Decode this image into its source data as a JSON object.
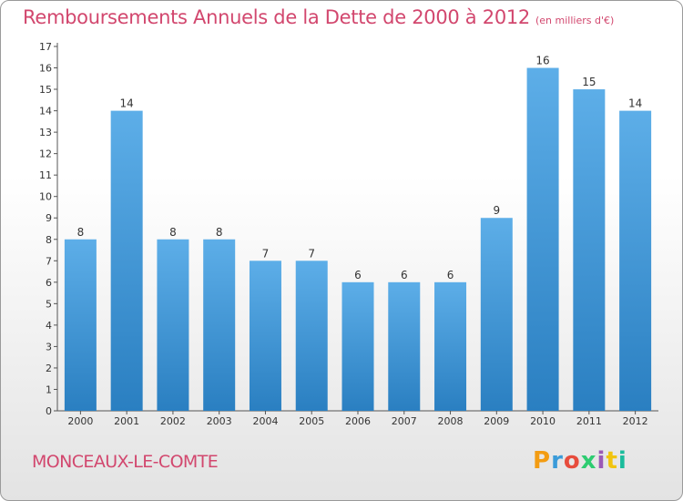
{
  "header": {
    "title": "Remboursements Annuels de la Dette de 2000 à 2012",
    "unit": "(en milliers d'€)"
  },
  "footer": {
    "commune": "MONCEAUX-LE-COMTE",
    "logo_text": "Proxiti",
    "logo_colors": [
      "#f39c12",
      "#3a9bd9",
      "#e74c3c",
      "#2ecc71",
      "#9b59b6",
      "#f1c40f",
      "#1abc9c"
    ]
  },
  "colors": {
    "title": "#d2476e",
    "bar_top": "#5daee8",
    "bar_bottom": "#2a7fc1"
  },
  "chart_data": {
    "type": "bar",
    "categories": [
      "2000",
      "2001",
      "2002",
      "2003",
      "2004",
      "2005",
      "2006",
      "2007",
      "2008",
      "2009",
      "2010",
      "2011",
      "2012"
    ],
    "values": [
      8,
      14,
      8,
      8,
      7,
      7,
      6,
      6,
      6,
      9,
      16,
      15,
      14
    ],
    "ylim": [
      0,
      17
    ],
    "yticks": [
      0,
      1,
      2,
      3,
      4,
      5,
      6,
      7,
      8,
      9,
      10,
      11,
      12,
      13,
      14,
      15,
      16,
      17
    ],
    "grid": false,
    "data_labels": true
  }
}
